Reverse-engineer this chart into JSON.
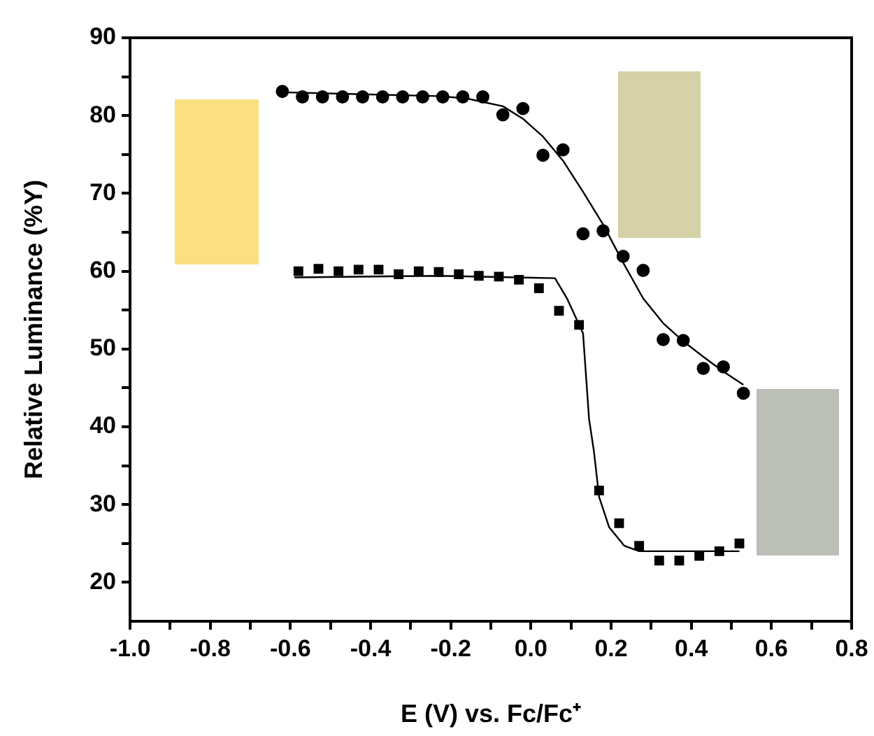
{
  "chart_data": {
    "type": "scatter",
    "xlabel": "E (V) vs. Fc/Fc⁺",
    "ylabel": "Relative Luminance (%Y)",
    "xlim": [
      -1.0,
      0.8
    ],
    "xticks": [
      {
        "value": -1.0,
        "label": "-1.0"
      },
      {
        "value": -0.9,
        "label": null
      },
      {
        "value": -0.8,
        "label": "-0.8"
      },
      {
        "value": -0.7,
        "label": null
      },
      {
        "value": -0.6,
        "label": "-0.6"
      },
      {
        "value": -0.5,
        "label": null
      },
      {
        "value": -0.4,
        "label": "-0.4"
      },
      {
        "value": -0.3,
        "label": null
      },
      {
        "value": -0.2,
        "label": "-0.2"
      },
      {
        "value": -0.1,
        "label": null
      },
      {
        "value": 0.0,
        "label": "0.0"
      },
      {
        "value": 0.1,
        "label": null
      },
      {
        "value": 0.2,
        "label": "0.2"
      },
      {
        "value": 0.3,
        "label": null
      },
      {
        "value": 0.4,
        "label": "0.4"
      },
      {
        "value": 0.5,
        "label": null
      },
      {
        "value": 0.6,
        "label": "0.6"
      },
      {
        "value": 0.7,
        "label": null
      },
      {
        "value": 0.8,
        "label": "0.8"
      }
    ],
    "ylim": [
      15,
      90
    ],
    "yticks": [
      20,
      {
        "value": 25,
        "label": null
      },
      30,
      {
        "value": 35,
        "label": null
      },
      40,
      {
        "value": 45,
        "label": null
      },
      50,
      {
        "value": 55,
        "label": null
      },
      60,
      {
        "value": 65,
        "label": null
      },
      70,
      {
        "value": 75,
        "label": null
      },
      80,
      {
        "value": 85,
        "label": null
      },
      90
    ],
    "grid": false,
    "legend": false,
    "series": [
      {
        "type": "scatter",
        "marker": "circle",
        "color": "#000000",
        "x": [
          -0.62,
          -0.57,
          -0.52,
          -0.47,
          -0.42,
          -0.37,
          -0.32,
          -0.27,
          -0.22,
          -0.17,
          -0.12,
          -0.07,
          -0.02,
          0.03,
          0.08,
          0.13,
          0.18,
          0.23,
          0.28,
          0.33,
          0.38,
          0.43,
          0.48,
          0.53
        ],
        "values": [
          83.1,
          82.4,
          82.4,
          82.4,
          82.4,
          82.4,
          82.4,
          82.4,
          82.4,
          82.4,
          82.4,
          80.1,
          80.9,
          74.9,
          75.6,
          64.8,
          65.2,
          61.9,
          60.1,
          51.2,
          51.1,
          47.5,
          47.7,
          44.3
        ]
      },
      {
        "type": "scatter",
        "marker": "square",
        "color": "#000000",
        "x": [
          -0.58,
          -0.53,
          -0.48,
          -0.43,
          -0.38,
          -0.33,
          -0.28,
          -0.23,
          -0.18,
          -0.13,
          -0.08,
          -0.03,
          0.02,
          0.07,
          0.12,
          0.17,
          0.22,
          0.27,
          0.32,
          0.37,
          0.42,
          0.47,
          0.52
        ],
        "values": [
          60.0,
          60.3,
          60.0,
          60.2,
          60.2,
          59.6,
          60.0,
          59.9,
          59.6,
          59.4,
          59.3,
          58.9,
          57.8,
          54.9,
          53.1,
          31.8,
          27.6,
          24.7,
          22.8,
          22.8,
          23.4,
          24.0,
          25.0
        ]
      },
      {
        "type": "line",
        "marker": "none",
        "line_style": "solid",
        "color": "#000000",
        "x": [
          -0.62,
          -0.23,
          -0.16,
          -0.07,
          -0.02,
          0.03,
          0.08,
          0.13,
          0.18,
          0.23,
          0.28,
          0.33,
          0.38,
          0.43,
          0.48,
          0.53
        ],
        "values": [
          83.0,
          82.5,
          82.2,
          81.2,
          79.6,
          77.3,
          74.2,
          70.2,
          66.0,
          61.1,
          56.5,
          53.3,
          51.0,
          49.0,
          47.1,
          45.4
        ]
      },
      {
        "type": "line",
        "marker": "none",
        "line_style": "solid",
        "color": "#000000",
        "x": [
          -0.59,
          -0.23,
          0.06,
          0.09,
          0.13,
          0.145,
          0.157,
          0.17,
          0.195,
          0.233,
          0.27,
          0.52
        ],
        "values": [
          59.2,
          59.4,
          59.1,
          56.5,
          52.0,
          41.0,
          36.9,
          31.0,
          27.1,
          24.7,
          24.0,
          24.0
        ]
      }
    ]
  }
}
